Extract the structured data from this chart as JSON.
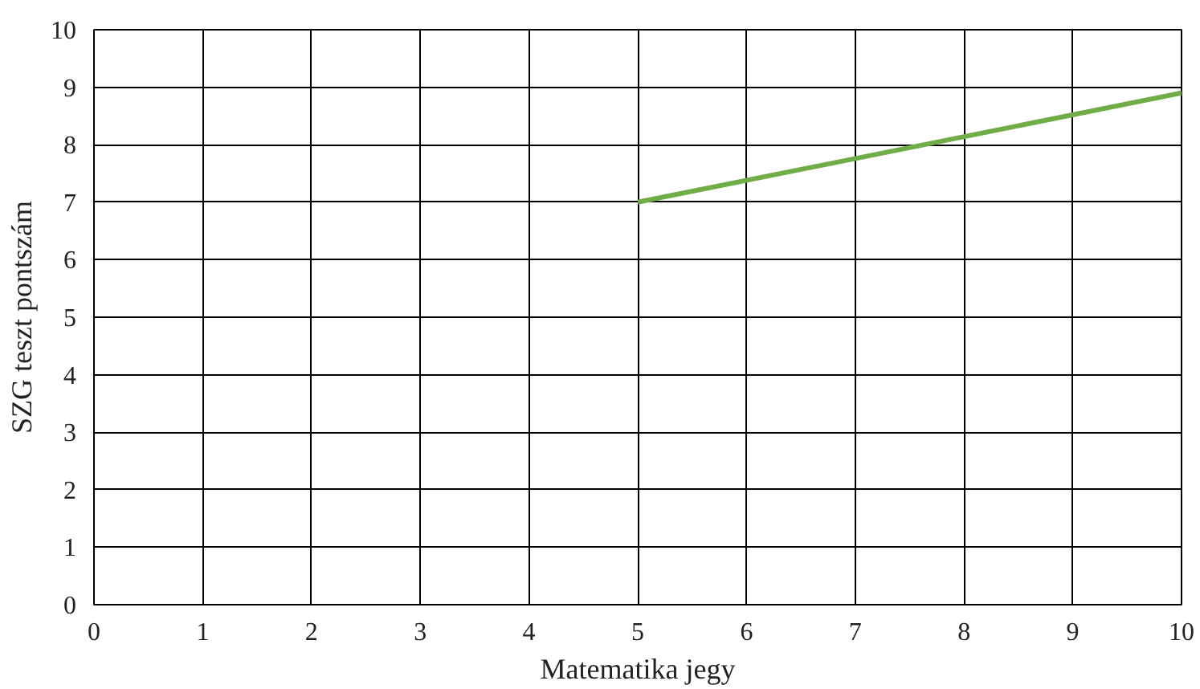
{
  "chart_data": {
    "type": "line",
    "xlabel": "Matematika jegy",
    "ylabel": "SZG teszt pontszám",
    "x": [
      5,
      10
    ],
    "series": [
      {
        "color": "#70ad47",
        "values": [
          7,
          8.9
        ]
      }
    ],
    "xlim": [
      0,
      10
    ],
    "ylim": [
      0,
      10
    ],
    "xticks": [
      0,
      1,
      2,
      3,
      4,
      5,
      6,
      7,
      8,
      9,
      10
    ],
    "yticks": [
      0,
      1,
      2,
      3,
      4,
      5,
      6,
      7,
      8,
      9,
      10
    ],
    "grid": true,
    "line_style": "solid"
  }
}
